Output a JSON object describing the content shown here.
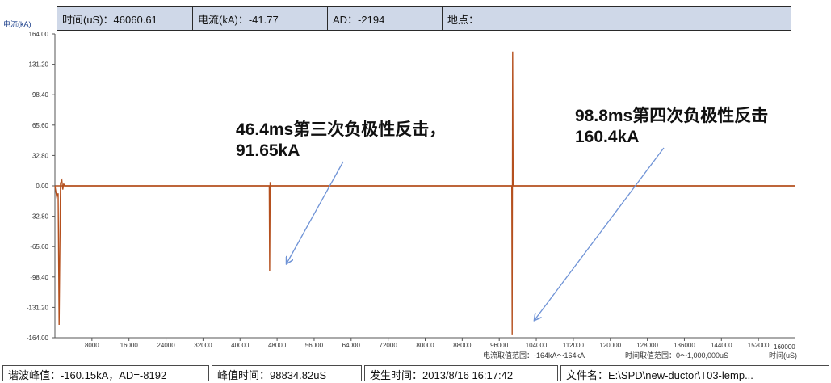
{
  "top_bar": {
    "time": "时间(uS)：46060.61",
    "current": "电流(kA)：-41.77",
    "ad": "AD：-2194",
    "location": "地点："
  },
  "bottom_bar": {
    "valley_peak": "谐波峰值：-160.15kA，AD=-8192",
    "peak_time": "峰值时间：98834.82uS",
    "occur_time": "发生时间：2013/8/16 16:17:42",
    "file_name": "文件名：E:\\SPD\\new-ductor\\T03-lemp..."
  },
  "annotations": {
    "third": {
      "line1": "46.4ms第三次负极性反击，",
      "line2": "91.65kA"
    },
    "fourth": {
      "line1": "98.8ms第四次负极性反击",
      "line2": "160.4kA"
    }
  },
  "chart_data": {
    "type": "line",
    "ylabel": "电流(kA)",
    "xlabel": "时间(uS)",
    "xlim": [
      0,
      160000
    ],
    "ylim": [
      -164,
      164
    ],
    "yticks": [
      "164.00",
      "131.20",
      "98.40",
      "65.60",
      "32.80",
      "0.00",
      "-32.80",
      "-65.60",
      "-98.40",
      "-131.20",
      "-164.00"
    ],
    "xticks": [
      "8000",
      "16000",
      "24000",
      "32000",
      "40000",
      "48000",
      "56000",
      "64000",
      "72000",
      "80000",
      "88000",
      "96000",
      "104000",
      "112000",
      "120000",
      "128000",
      "136000",
      "144000",
      "152000"
    ],
    "xmax_label": "160000",
    "range_text_current": "电流取值范围：-164kA～164kA",
    "range_text_time": "时间取值范围：0～1,000,000uS",
    "series_color": "#b5501e",
    "arrow_color": "#6f93d6",
    "x": [
      0,
      400,
      700,
      900,
      1200,
      1500,
      1700,
      1900,
      2200,
      46300,
      46400,
      46500,
      46600,
      98700,
      98800,
      98900,
      99000,
      160000
    ],
    "y": [
      0,
      -12,
      -8,
      -150,
      3,
      6,
      -4,
      2,
      0,
      0,
      -91.65,
      4,
      0,
      0,
      -160.4,
      145,
      0,
      0
    ]
  }
}
